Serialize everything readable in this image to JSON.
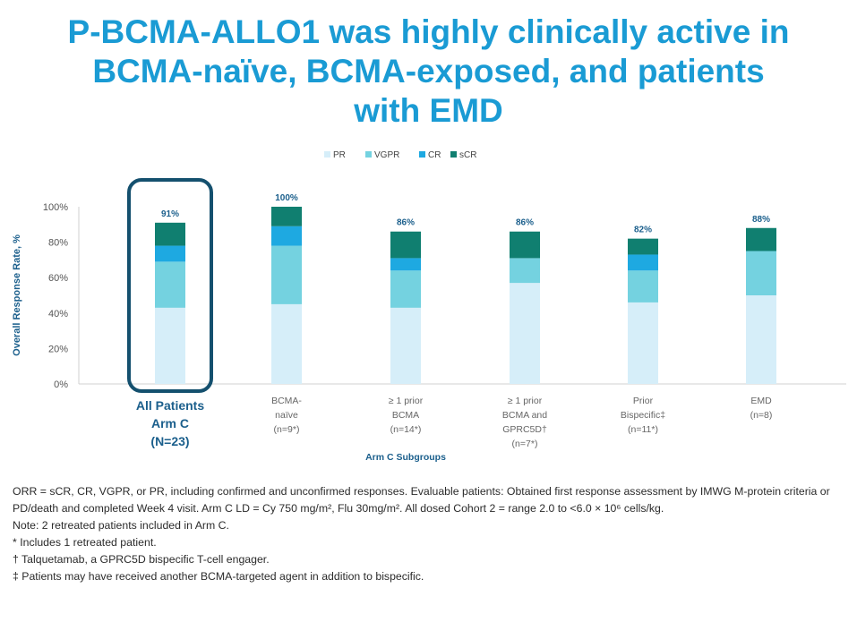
{
  "title_lines": [
    "P-BCMA-ALLO1 was highly clinically active in",
    "BCMA-naïve, BCMA-exposed, and patients",
    "with EMD"
  ],
  "chart_data": {
    "type": "bar",
    "stacked": true,
    "categories": [
      [
        "All Patients",
        "Arm C",
        "(N=23)"
      ],
      [
        "BCMA-",
        "naïve",
        "(n=9*)"
      ],
      [
        "≥ 1 prior",
        "BCMA",
        "(n=14*)"
      ],
      [
        "≥ 1 prior",
        "BCMA and",
        "GPRC5D†",
        "(n=7*)"
      ],
      [
        "Prior",
        "Bispecific‡",
        "(n=11*)"
      ],
      [
        "EMD",
        "(n=8)"
      ]
    ],
    "totals": [
      "91%",
      "100%",
      "86%",
      "86%",
      "82%",
      "88%"
    ],
    "series": [
      {
        "name": "PR",
        "color": "#d6eef9",
        "values": [
          43,
          45,
          43,
          57,
          46,
          50
        ]
      },
      {
        "name": "VGPR",
        "color": "#74d2e0",
        "values": [
          26,
          33,
          21,
          14,
          18,
          25
        ]
      },
      {
        "name": "CR",
        "color": "#1ea9e1",
        "values": [
          9,
          11,
          7,
          0,
          9,
          0
        ]
      },
      {
        "name": "sCR",
        "color": "#107f70",
        "values": [
          13,
          11,
          15,
          15,
          9,
          13
        ]
      }
    ],
    "ylabel": "Overall Response Rate, %",
    "xlabel": "Arm C Subgroups",
    "yticks": [
      "0%",
      "20%",
      "40%",
      "60%",
      "80%",
      "100%"
    ],
    "ylim": [
      0,
      100
    ],
    "legend_position": "top-center",
    "highlighted_category_index": 0,
    "highlight_color": "#14506e"
  },
  "footnotes": {
    "orr": "ORR = sCR, CR, VGPR, or PR, including confirmed and unconfirmed responses. Evaluable patients: Obtained first response assessment by IMWG M-protein criteria or PD/death and completed Week 4 visit. Arm C LD = Cy 750 mg/m², Flu 30mg/m². All dosed Cohort 2 = range 2.0 to <6.0 × 10⁶ cells/kg.",
    "note": "Note: 2 retreated patients included in Arm C.",
    "asterisk": "* Includes 1 retreated patient.",
    "dagger": "† Talquetamab, a GPRC5D bispecific T-cell engager.",
    "double_dagger": "‡ Patients may have received another BCMA-targeted agent in addition to bispecific."
  }
}
